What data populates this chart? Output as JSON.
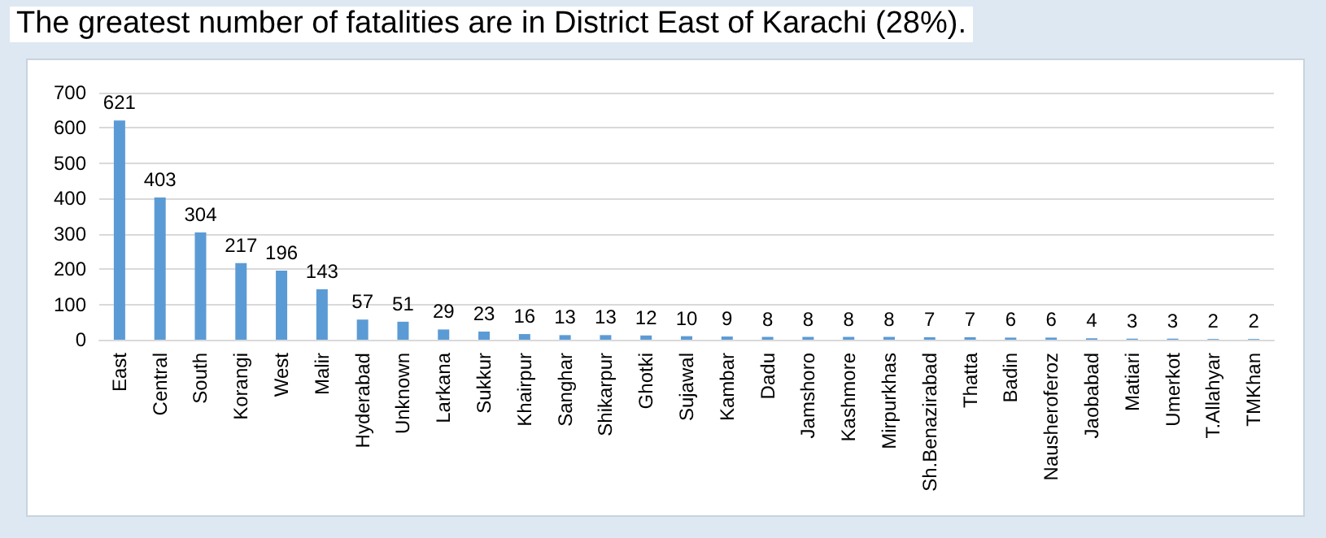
{
  "chart_data": {
    "type": "bar",
    "title": "The greatest number of fatalities are in District East of Karachi (28%).",
    "categories": [
      "East",
      "Central",
      "South",
      "Korangi",
      "West",
      "Malir",
      "Hyderabad",
      "Unknown",
      "Larkana",
      "Sukkur",
      "Khairpur",
      "Sanghar",
      "Shikarpur",
      "Ghotki",
      "Sujawal",
      "Kambar",
      "Dadu",
      "Jamshoro",
      "Kashmore",
      "Mirpurkhas",
      "Sh.Benazirabad",
      "Thatta",
      "Badin",
      "Nausheroferoz",
      "Jaobabad",
      "Matiari",
      "Umerkot",
      "T.Allahyar",
      "TMKhan"
    ],
    "values": [
      621,
      403,
      304,
      217,
      196,
      143,
      57,
      51,
      29,
      23,
      16,
      13,
      13,
      12,
      10,
      9,
      8,
      8,
      8,
      8,
      7,
      7,
      6,
      6,
      4,
      3,
      3,
      2,
      2
    ],
    "color": "#5b9bd5",
    "ylim": [
      0,
      700
    ],
    "yticks": [
      0,
      100,
      200,
      300,
      400,
      500,
      600,
      700
    ],
    "grid": "y",
    "data_labels": true
  }
}
